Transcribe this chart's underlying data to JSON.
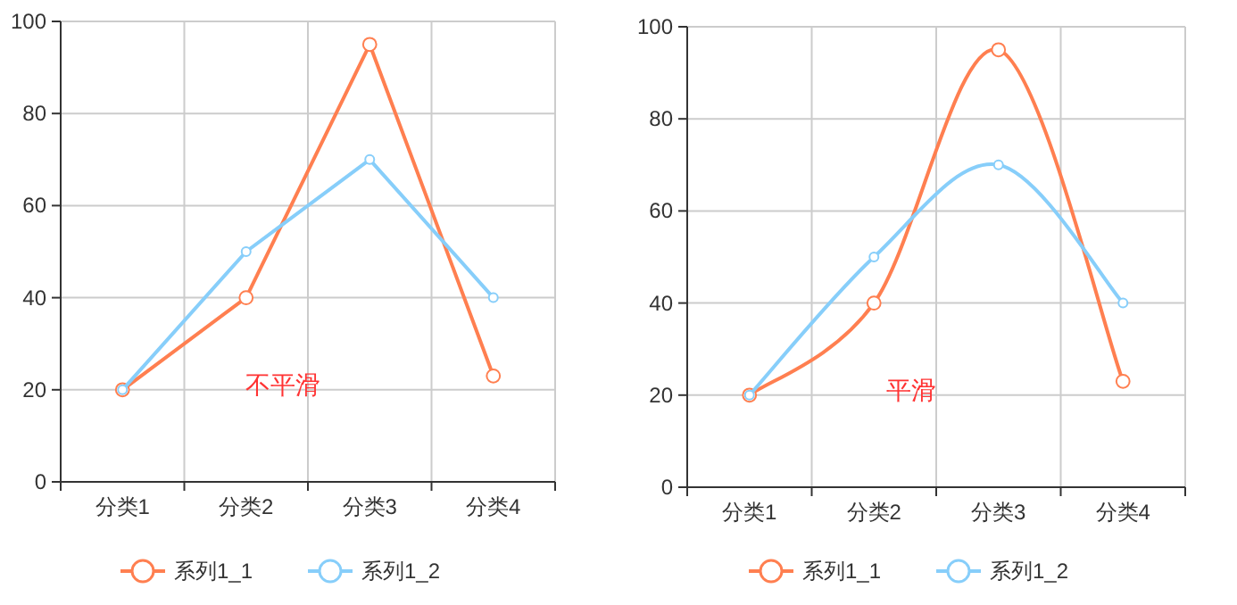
{
  "chart_data": [
    {
      "type": "line",
      "categories": [
        "分类1",
        "分类2",
        "分类3",
        "分类4"
      ],
      "ylim": [
        0,
        100
      ],
      "yticks": [
        0,
        20,
        40,
        60,
        80,
        100
      ],
      "grid": true,
      "legend": "bottom",
      "marker": "circle",
      "annotations": [
        "不平滑"
      ],
      "series": [
        {
          "name": "系列1_1",
          "color": "#ff7f50",
          "values": [
            20,
            40,
            95,
            23
          ]
        },
        {
          "name": "系列1_2",
          "color": "#87cefa",
          "values": [
            20,
            50,
            70,
            40
          ]
        }
      ]
    },
    {
      "type": "line",
      "categories": [
        "分类1",
        "分类2",
        "分类3",
        "分类4"
      ],
      "ylim": [
        0,
        100
      ],
      "yticks": [
        0,
        20,
        40,
        60,
        80,
        100
      ],
      "grid": true,
      "legend": "bottom",
      "marker": "circle",
      "annotations": [
        "平滑"
      ],
      "series": [
        {
          "name": "系列1_1",
          "color": "#ff7f50",
          "values": [
            20,
            40,
            95,
            23
          ]
        },
        {
          "name": "系列1_2",
          "color": "#87cefa",
          "values": [
            20,
            50,
            70,
            40
          ]
        }
      ]
    }
  ]
}
